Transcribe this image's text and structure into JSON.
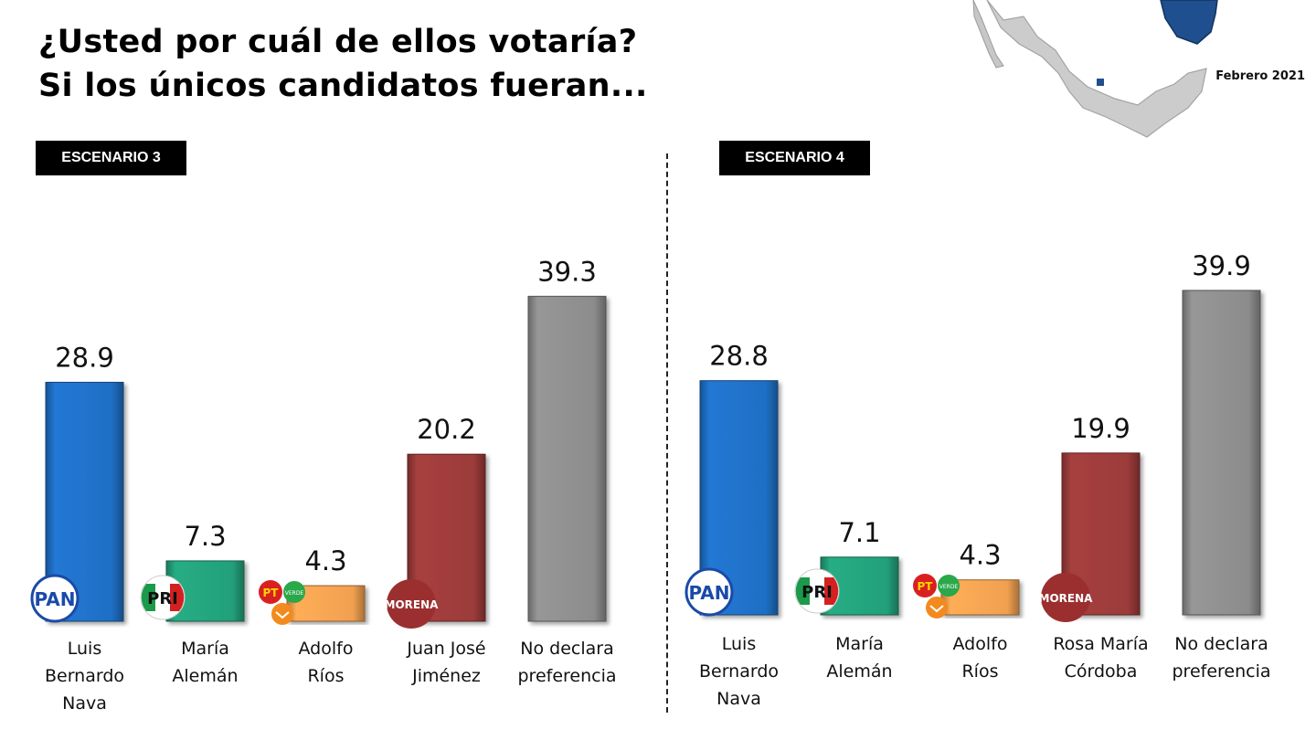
{
  "title": {
    "line1": "¿Usted por cuál de ellos votaría?",
    "line2": "Si los únicos candidatos fueran..."
  },
  "date_label": "Febrero 2021",
  "colors": {
    "pan": "#1f6fc4",
    "pri": "#23a07a",
    "pt_verde_mc": "#f0a050",
    "morena": "#9b3b3a",
    "none": "#8c8c8c"
  },
  "party_logos": {
    "pan": "PAN",
    "pri": "PRI",
    "pt": "PT",
    "verde": "VERDE",
    "morena": "MORENA"
  },
  "chart_data": [
    {
      "type": "bar",
      "scenario": "ESCENARIO 3",
      "categories": [
        [
          "Luis",
          "Bernardo",
          "Nava"
        ],
        [
          "María",
          "Alemán"
        ],
        [
          "Adolfo",
          "Ríos"
        ],
        [
          "Juan José",
          "Jiménez"
        ],
        [
          "No declara",
          "preferencia"
        ]
      ],
      "parties": [
        "pan",
        "pri",
        "pt_verde_mc",
        "morena",
        "none"
      ],
      "values": [
        28.9,
        7.3,
        4.3,
        20.2,
        39.3
      ],
      "ylim": [
        0,
        45
      ]
    },
    {
      "type": "bar",
      "scenario": "ESCENARIO 4",
      "categories": [
        [
          "Luis",
          "Bernardo",
          "Nava"
        ],
        [
          "María",
          "Alemán"
        ],
        [
          "Adolfo",
          "Ríos"
        ],
        [
          "Rosa María",
          "Córdoba"
        ],
        [
          "No declara",
          "preferencia"
        ]
      ],
      "parties": [
        "pan",
        "pri",
        "pt_verde_mc",
        "morena",
        "none"
      ],
      "values": [
        28.8,
        7.1,
        4.3,
        19.9,
        39.9
      ],
      "ylim": [
        0,
        45
      ]
    }
  ]
}
